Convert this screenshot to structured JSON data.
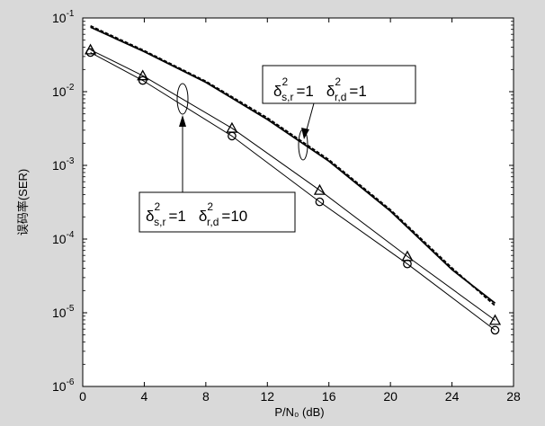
{
  "chart_data": {
    "type": "line",
    "title": "",
    "xlabel": "P/N₀ (dB)",
    "ylabel": "误码率(SER)",
    "xlim": [
      0,
      28
    ],
    "ylim": [
      1e-06,
      0.1
    ],
    "y_scale": "log",
    "x_ticks": [
      "0",
      "4",
      "8",
      "12",
      "16",
      "20",
      "24",
      "28"
    ],
    "y_ticks": [
      {
        "base": "10",
        "exp": "-1"
      },
      {
        "base": "10",
        "exp": "-2"
      },
      {
        "base": "10",
        "exp": "-3"
      },
      {
        "base": "10",
        "exp": "-4"
      },
      {
        "base": "10",
        "exp": "-5"
      },
      {
        "base": "10",
        "exp": "-6"
      }
    ],
    "grid": false,
    "series": [
      {
        "x": [
          0.5,
          3.9,
          9.7,
          15.4,
          21.1,
          26.8
        ],
        "y": [
          0.037,
          0.0165,
          0.0032,
          0.00046,
          5.8e-05,
          7.9e-06
        ],
        "marker": "triangle",
        "style": "solid"
      },
      {
        "x": [
          0.5,
          3.9,
          9.7,
          15.4,
          21.1,
          26.8
        ],
        "y": [
          0.034,
          0.0142,
          0.0025,
          0.00032,
          4.6e-05,
          5.8e-06
        ],
        "marker": "circle",
        "style": "solid"
      },
      {
        "x": [
          0.5,
          4,
          8,
          12,
          16,
          20,
          24,
          26.8
        ],
        "y": [
          0.075,
          0.035,
          0.0134,
          0.0042,
          0.00114,
          0.00024,
          3.85e-05,
          1.35e-05
        ],
        "marker": "none",
        "style": "solid"
      },
      {
        "x": [
          0.5,
          4,
          8,
          12,
          16,
          20,
          24,
          26.8
        ],
        "y": [
          0.078,
          0.036,
          0.0138,
          0.0044,
          0.00119,
          0.00025,
          4.05e-05,
          1.25e-05
        ],
        "marker": "none",
        "style": "dashed"
      }
    ],
    "annotations": [
      {
        "symbol": "δ",
        "sup1": "2",
        "sub1": "s,r",
        "eq1": "=1",
        "sup2": "2",
        "sub2": "r,d",
        "eq2": "=1"
      },
      {
        "symbol": "δ",
        "sup1": "2",
        "sub1": "s,r",
        "eq1": "=1",
        "sup2": "2",
        "sub2": "r,d",
        "eq2": "=10"
      }
    ]
  }
}
